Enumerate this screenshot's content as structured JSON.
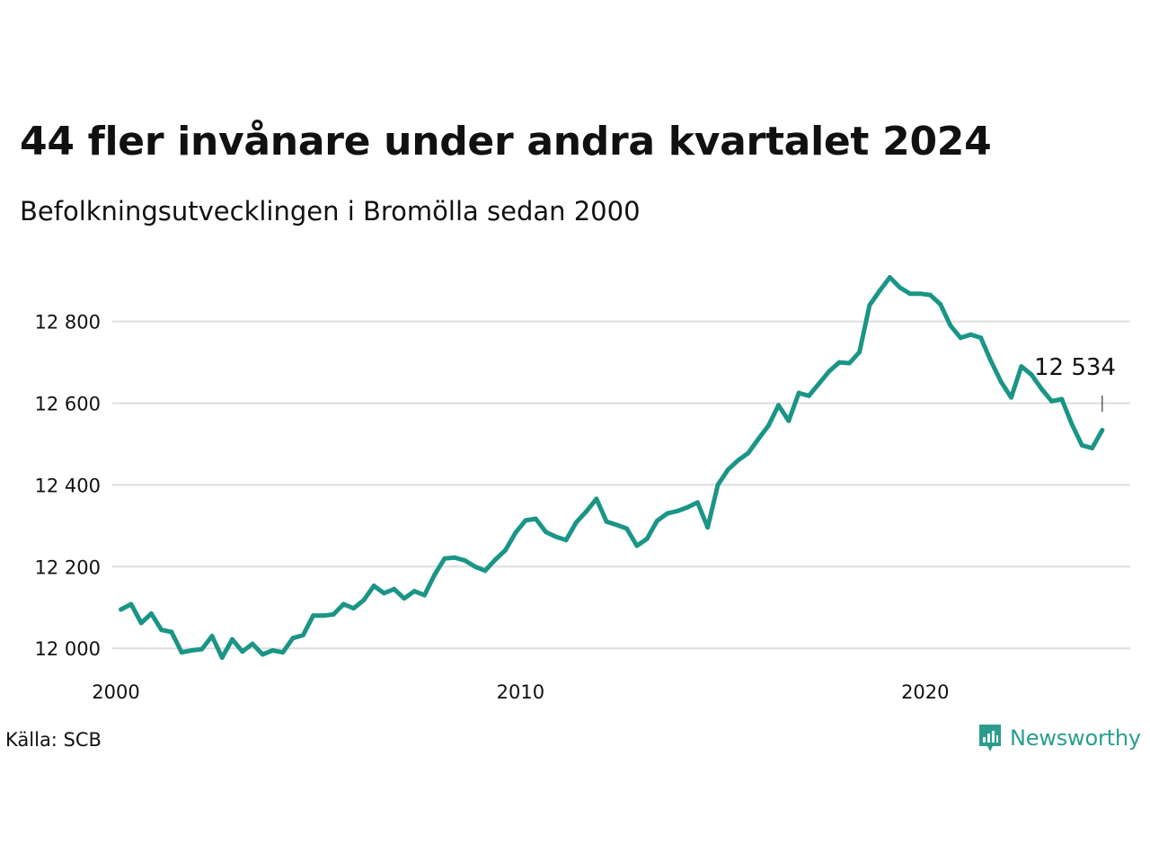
{
  "title": "44 fler invånare under andra kvartalet 2024",
  "subtitle": "Befolkningsutvecklingen i Bromölla sedan 2000",
  "source": "Källa: SCB",
  "brand": {
    "name": "Newsworthy",
    "icon": "newsworthy-logo-icon",
    "color": "#2a9d8f"
  },
  "colors": {
    "line": "#1a9586",
    "grid": "#dddddd",
    "text": "#111111"
  },
  "chart_data": {
    "type": "line",
    "title": "44 fler invånare under andra kvartalet 2024",
    "subtitle": "Befolkningsutvecklingen i Bromölla sedan 2000",
    "xlabel": "",
    "ylabel": "",
    "xlim": [
      2000,
      2025
    ],
    "ylim": [
      11930,
      12940
    ],
    "x_ticks": [
      2000,
      2010,
      2020
    ],
    "x_tick_labels": [
      "2000",
      "2010",
      "2020"
    ],
    "y_ticks": [
      12000,
      12200,
      12400,
      12600,
      12800
    ],
    "y_tick_labels": [
      "12 000",
      "12 200",
      "12 400",
      "12 600",
      "12 800"
    ],
    "grid": "horizontal",
    "annotation": {
      "label": "12 534",
      "x": 2024.375,
      "y": 12534
    },
    "series": [
      {
        "x": [
          2000.125,
          2000.375,
          2000.625,
          2000.875,
          2001.125,
          2001.375,
          2001.625,
          2001.875,
          2002.125,
          2002.375,
          2002.625,
          2002.875,
          2003.125,
          2003.375,
          2003.625,
          2003.875,
          2004.125,
          2004.375,
          2004.625,
          2004.875,
          2005.125,
          2005.375,
          2005.625,
          2005.875,
          2006.125,
          2006.375,
          2006.625,
          2006.875,
          2007.125,
          2007.375,
          2007.625,
          2007.875,
          2008.125,
          2008.375,
          2008.625,
          2008.875,
          2009.125,
          2009.375,
          2009.625,
          2009.875,
          2010.125,
          2010.375,
          2010.625,
          2010.875,
          2011.125,
          2011.375,
          2011.625,
          2011.875,
          2012.125,
          2012.375,
          2012.625,
          2012.875,
          2013.125,
          2013.375,
          2013.625,
          2013.875,
          2014.125,
          2014.375,
          2014.625,
          2014.875,
          2015.125,
          2015.375,
          2015.625,
          2015.875,
          2016.125,
          2016.375,
          2016.625,
          2016.875,
          2017.125,
          2017.375,
          2017.625,
          2017.875,
          2018.125,
          2018.375,
          2018.625,
          2018.875,
          2019.125,
          2019.375,
          2019.625,
          2019.875,
          2020.125,
          2020.375,
          2020.625,
          2020.875,
          2021.125,
          2021.375,
          2021.625,
          2021.875,
          2022.125,
          2022.375,
          2022.625,
          2022.875,
          2023.125,
          2023.375,
          2023.625,
          2023.875,
          2024.125,
          2024.375
        ],
        "values": [
          12095,
          12108,
          12062,
          12085,
          12045,
          12040,
          11990,
          11995,
          11998,
          12030,
          11977,
          12022,
          11992,
          12011,
          11985,
          11995,
          11990,
          12025,
          12032,
          12080,
          12080,
          12083,
          12108,
          12098,
          12118,
          12153,
          12135,
          12145,
          12122,
          12140,
          12130,
          12180,
          12220,
          12222,
          12215,
          12200,
          12190,
          12217,
          12240,
          12283,
          12313,
          12317,
          12285,
          12273,
          12265,
          12308,
          12335,
          12366,
          12310,
          12302,
          12293,
          12251,
          12268,
          12312,
          12330,
          12336,
          12345,
          12357,
          12296,
          12400,
          12437,
          12460,
          12478,
          12512,
          12545,
          12595,
          12557,
          12625,
          12618,
          12648,
          12678,
          12700,
          12698,
          12725,
          12840,
          12875,
          12908,
          12883,
          12868,
          12868,
          12865,
          12842,
          12790,
          12760,
          12768,
          12760,
          12703,
          12652,
          12614,
          12690,
          12670,
          12635,
          12605,
          12610,
          12548,
          12497,
          12490,
          12534
        ]
      }
    ]
  }
}
